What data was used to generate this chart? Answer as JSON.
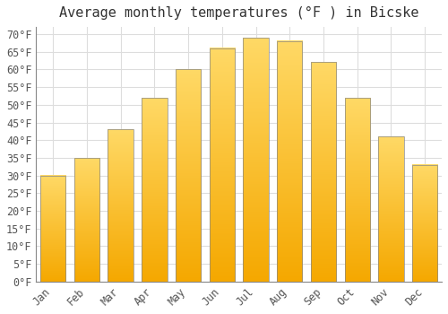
{
  "title": "Average monthly temperatures (°F ) in Bicske",
  "months": [
    "Jan",
    "Feb",
    "Mar",
    "Apr",
    "May",
    "Jun",
    "Jul",
    "Aug",
    "Sep",
    "Oct",
    "Nov",
    "Dec"
  ],
  "values": [
    30,
    35,
    43,
    52,
    60,
    66,
    69,
    68,
    62,
    52,
    41,
    33
  ],
  "bar_color_bottom": "#F5A800",
  "bar_color_top": "#FFD966",
  "bar_edge_color": "#888888",
  "background_color": "#FFFFFF",
  "plot_bg_color": "#FFFFFF",
  "grid_color": "#DDDDDD",
  "ylim": [
    0,
    72
  ],
  "yticks": [
    0,
    5,
    10,
    15,
    20,
    25,
    30,
    35,
    40,
    45,
    50,
    55,
    60,
    65,
    70
  ],
  "title_fontsize": 11,
  "tick_fontsize": 8.5,
  "font_family": "monospace",
  "bar_width": 0.75
}
